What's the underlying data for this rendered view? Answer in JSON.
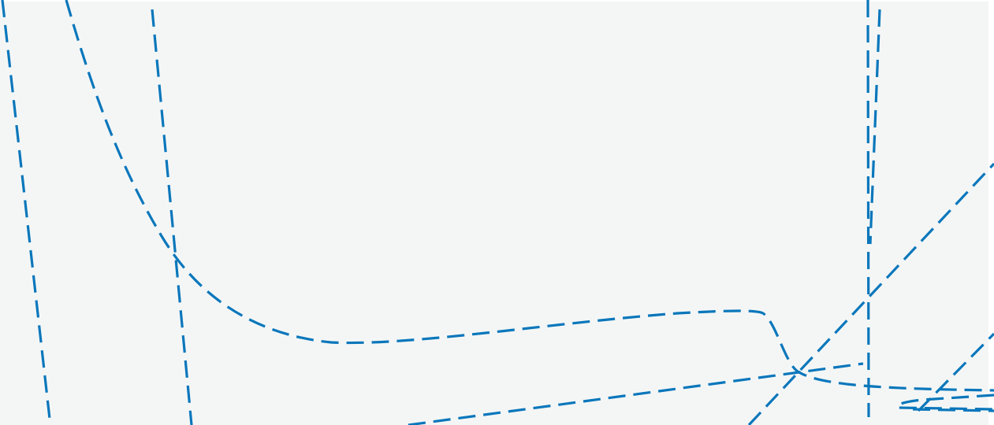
{
  "map": {
    "background_color": "#f4f6f6",
    "route_color": "#0a77bb",
    "route_style": "dashed",
    "routes": [
      {
        "id": "route-1"
      },
      {
        "id": "route-2"
      },
      {
        "id": "route-3"
      },
      {
        "id": "route-4"
      },
      {
        "id": "route-5"
      },
      {
        "id": "route-6"
      },
      {
        "id": "route-7"
      },
      {
        "id": "route-8"
      },
      {
        "id": "route-9"
      },
      {
        "id": "route-10"
      }
    ]
  }
}
